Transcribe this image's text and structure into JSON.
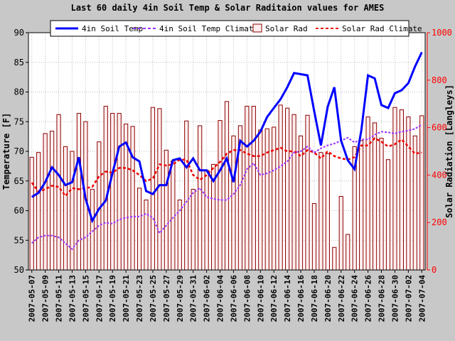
{
  "colors": {
    "soil": "#0000ff",
    "soil_climate": "#9933ff",
    "rad_bar_fill": "#ffeeee",
    "rad_bar_stroke": "#8b0000",
    "rad_climate": "#ee0000",
    "axis_right": "#ff0000",
    "grid": "#bbbbbb"
  },
  "chart_data": {
    "type": "line",
    "title": "Last 60 daily 4in Soil Temp & Solar Raditaion values for  AMES",
    "ylabel_left": "Temperature [F]",
    "ylabel_right": "Solar Radiation [Langleys]",
    "ylim_left": [
      50,
      90
    ],
    "ylim_right": [
      0,
      1000
    ],
    "yticks_left": [
      "50",
      "55",
      "60",
      "65",
      "70",
      "75",
      "80",
      "85",
      "90"
    ],
    "yticks_right": [
      "0",
      "200",
      "400",
      "600",
      "800",
      "1000"
    ],
    "grid": true,
    "legend_placement": "top",
    "x": [
      "2007-05-07",
      "2007-05-08",
      "2007-05-09",
      "2007-05-10",
      "2007-05-11",
      "2007-05-12",
      "2007-05-13",
      "2007-05-14",
      "2007-05-15",
      "2007-05-16",
      "2007-05-17",
      "2007-05-18",
      "2007-05-19",
      "2007-05-20",
      "2007-05-21",
      "2007-05-22",
      "2007-05-23",
      "2007-05-24",
      "2007-05-25",
      "2007-05-26",
      "2007-05-27",
      "2007-05-28",
      "2007-05-29",
      "2007-05-30",
      "2007-05-31",
      "2007-06-01",
      "2007-06-02",
      "2007-06-03",
      "2007-06-04",
      "2007-06-05",
      "2007-06-06",
      "2007-06-07",
      "2007-06-08",
      "2007-06-09",
      "2007-06-10",
      "2007-06-11",
      "2007-06-12",
      "2007-06-13",
      "2007-06-14",
      "2007-06-15",
      "2007-06-16",
      "2007-06-17",
      "2007-06-18",
      "2007-06-19",
      "2007-06-20",
      "2007-06-21",
      "2007-06-22",
      "2007-06-23",
      "2007-06-24",
      "2007-06-25",
      "2007-06-26",
      "2007-06-27",
      "2007-06-28",
      "2007-06-29",
      "2007-06-30",
      "2007-07-01",
      "2007-07-02",
      "2007-07-03",
      "2007-07-04"
    ],
    "xtick_labels": [
      "2007-05-07",
      "2007-05-09",
      "2007-05-11",
      "2007-05-13",
      "2007-05-15",
      "2007-05-17",
      "2007-05-19",
      "2007-05-21",
      "2007-05-23",
      "2007-05-25",
      "2007-05-27",
      "2007-05-29",
      "2007-05-31",
      "2007-06-02",
      "2007-06-04",
      "2007-06-06",
      "2007-06-08",
      "2007-06-10",
      "2007-06-12",
      "2007-06-14",
      "2007-06-16",
      "2007-06-18",
      "2007-06-20",
      "2007-06-22",
      "2007-06-24",
      "2007-06-26",
      "2007-06-28",
      "2007-06-30",
      "2007-07-02",
      "2007-07-04"
    ],
    "series": [
      {
        "name": "4in Soil Temp",
        "axis": "left",
        "kind": "line",
        "values": [
          62.3,
          63.0,
          64.8,
          67.3,
          66.0,
          64.3,
          64.8,
          69.0,
          62.0,
          58.3,
          60.3,
          61.7,
          66.3,
          70.8,
          71.5,
          69.0,
          68.3,
          63.3,
          62.8,
          64.3,
          64.3,
          68.5,
          68.8,
          67.3,
          68.8,
          66.8,
          66.8,
          65.0,
          66.8,
          68.8,
          64.8,
          71.8,
          70.8,
          71.8,
          73.3,
          75.8,
          77.3,
          78.8,
          80.8,
          83.2,
          83.0,
          82.8,
          76.8,
          71.0,
          77.5,
          80.8,
          71.8,
          68.5,
          67.0,
          73.5,
          82.8,
          82.3,
          77.8,
          77.3,
          79.8,
          80.3,
          81.5,
          84.3,
          86.7
        ]
      },
      {
        "name": "4in Soil Temp Climate",
        "axis": "left",
        "kind": "line",
        "values": [
          54.5,
          55.5,
          55.8,
          55.8,
          55.5,
          54.5,
          53.5,
          55.0,
          55.5,
          56.5,
          57.5,
          58.0,
          57.8,
          58.5,
          58.8,
          59.0,
          59.0,
          59.5,
          58.8,
          56.2,
          57.5,
          58.8,
          60.0,
          61.5,
          63.0,
          63.8,
          62.3,
          62.0,
          61.8,
          61.8,
          62.8,
          64.3,
          67.0,
          68.0,
          66.0,
          66.3,
          66.8,
          67.5,
          68.3,
          69.8,
          70.0,
          70.8,
          69.8,
          70.5,
          71.0,
          71.3,
          71.8,
          72.3,
          71.5,
          72.0,
          72.0,
          72.8,
          73.3,
          73.2,
          73.0,
          73.3,
          73.5,
          73.8,
          74.5
        ]
      },
      {
        "name": "Solar Rad",
        "axis": "right",
        "kind": "bar",
        "values": [
          475,
          495,
          575,
          585,
          655,
          520,
          500,
          660,
          625,
          340,
          540,
          690,
          660,
          660,
          615,
          605,
          345,
          295,
          685,
          680,
          505,
          460,
          295,
          628,
          340,
          608,
          420,
          445,
          630,
          710,
          565,
          608,
          690,
          690,
          590,
          595,
          602,
          695,
          682,
          655,
          565,
          652,
          280,
          495,
          490,
          95,
          310,
          150,
          520,
          545,
          645,
          620,
          555,
          465,
          685,
          675,
          645,
          565,
          650
        ]
      },
      {
        "name": "Solar Rad Climate",
        "axis": "right",
        "kind": "line",
        "values": [
          368,
          330,
          340,
          355,
          350,
          312,
          345,
          340,
          345,
          350,
          395,
          415,
          410,
          430,
          430,
          420,
          400,
          375,
          385,
          445,
          440,
          445,
          465,
          465,
          400,
          380,
          400,
          430,
          455,
          490,
          505,
          505,
          490,
          480,
          480,
          495,
          505,
          515,
          500,
          500,
          480,
          505,
          495,
          470,
          500,
          480,
          470,
          465,
          475,
          525,
          525,
          555,
          540,
          520,
          530,
          550,
          520,
          490,
          495
        ]
      }
    ]
  }
}
